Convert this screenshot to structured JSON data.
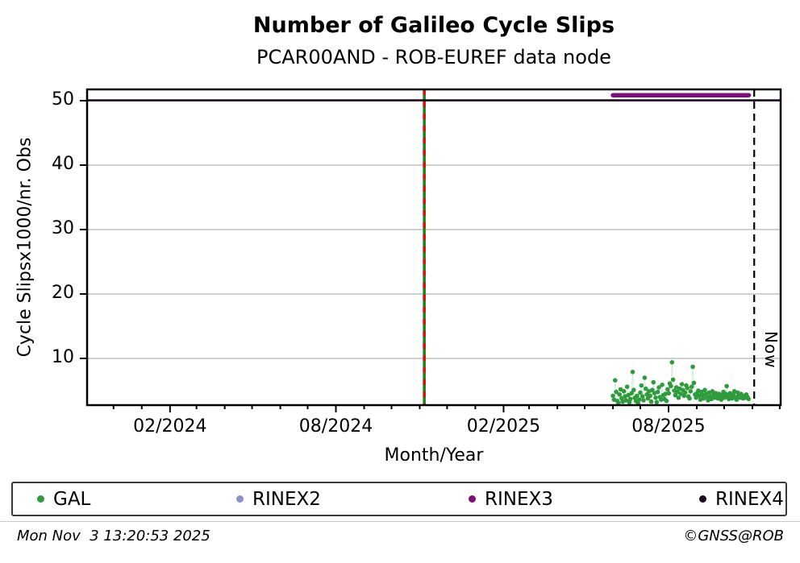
{
  "header": {
    "title": "Number of Galileo Cycle Slips",
    "subtitle": "PCAR00AND - ROB-EUREF data node"
  },
  "footer": {
    "timestamp": "Mon Nov  3 13:20:53 2025",
    "credit": "©GNSS@ROB"
  },
  "colors": {
    "gal_green": "#2e9b3c",
    "gal_connector": "rgba(46,155,60,0.20)",
    "rinex2_lavender": "#8f8fc9",
    "rinex3_purple": "#7d0c7d",
    "rinex4_darkpurple": "#1c0a20",
    "event_green": "#168416",
    "event_red": "#dd1111",
    "grid_gray": "#b3b3b3",
    "axis_black": "#000000"
  },
  "chart_data": {
    "type": "scatter",
    "title": "Number of Galileo Cycle Slips",
    "subtitle": "PCAR00AND - ROB-EUREF data node",
    "xlabel": "Month/Year",
    "ylabel": "Cycle Slipsx1000/nr. Obs",
    "xlim": [
      "2023-11-02",
      "2025-12-02"
    ],
    "ylim": [
      2.75,
      51.75
    ],
    "grid": "horizontal-gray-major",
    "y_ticks": [
      {
        "value": 10,
        "label": "10"
      },
      {
        "value": 20,
        "label": "20"
      },
      {
        "value": 30,
        "label": "30"
      },
      {
        "value": 40,
        "label": "40"
      },
      {
        "value": 50,
        "label": "50"
      }
    ],
    "x_major_ticks": [
      {
        "date": "2024-02-01",
        "label": "02/2024"
      },
      {
        "date": "2024-08-01",
        "label": "08/2024"
      },
      {
        "date": "2025-02-01",
        "label": "02/2025"
      },
      {
        "date": "2025-08-01",
        "label": "08/2025"
      }
    ],
    "x_minor_tick_interval_months": 1,
    "series": [
      {
        "name": "GAL",
        "type": "scatter-daily",
        "color": "#2e9b3c",
        "start": "2025-06-01",
        "step_days": 1.2,
        "values": [
          4.2,
          3.6,
          6.6,
          4.8,
          3.4,
          3.1,
          4.4,
          5.2,
          3.8,
          3.3,
          4.9,
          4.1,
          3.5,
          5.6,
          4.3,
          3.2,
          3.7,
          4.6,
          7.9,
          5.1,
          3.9,
          3.4,
          4.2,
          3.0,
          3.6,
          4.7,
          5.8,
          4.1,
          3.5,
          7.0,
          5.3,
          4.4,
          3.8,
          4.9,
          4.2,
          3.3,
          5.1,
          6.3,
          4.6,
          3.9,
          3.2,
          4.8,
          5.5,
          4.0,
          3.6,
          5.9,
          4.3,
          3.7,
          4.5,
          3.4,
          5.2,
          4.6,
          6.1,
          5.7,
          9.4,
          6.7,
          5.0,
          4.3,
          5.5,
          4.8,
          3.9,
          5.3,
          4.5,
          6.0,
          5.1,
          4.2,
          4.7,
          5.8,
          5.4,
          4.1,
          3.8,
          4.9,
          5.6,
          8.7,
          6.2,
          4.4,
          3.9,
          4.6,
          5.0,
          4.2,
          3.6,
          4.8,
          4.3,
          3.8,
          5.1,
          4.5,
          4.0,
          3.5,
          4.7,
          4.1,
          3.7,
          4.9,
          4.4,
          3.9,
          4.6,
          4.2,
          3.8,
          4.5,
          4.0,
          3.6,
          4.3,
          4.8,
          3.9,
          4.5,
          5.7,
          4.1,
          3.7,
          4.6,
          4.2,
          3.8,
          4.4,
          4.9,
          4.0,
          3.6,
          4.7,
          4.3,
          3.9,
          4.5,
          4.1,
          3.8,
          4.2,
          3.9,
          4.4,
          4.0,
          3.7
        ]
      },
      {
        "name": "RINEX3",
        "type": "availability-line",
        "color": "#7d0c7d",
        "y": 50.85,
        "from": "2025-06-01",
        "to": "2025-10-28"
      },
      {
        "name": "RINEX4",
        "type": "availability-line",
        "color": "#1c0a20",
        "y": 50.05,
        "from": "2023-11-02",
        "to": "2025-12-02"
      }
    ],
    "events": [
      {
        "date": "2024-11-06",
        "style": "green-solid-with-red-dashes"
      }
    ],
    "now_line": {
      "date": "2025-11-03",
      "label": "Now",
      "style": "black-dashed"
    },
    "legend_position": "bottom"
  },
  "legend": {
    "items": [
      {
        "label": "GAL",
        "color": "#2e9b3c"
      },
      {
        "label": "RINEX2",
        "color": "#8f8fc9"
      },
      {
        "label": "RINEX3",
        "color": "#7d0c7d"
      },
      {
        "label": "RINEX4",
        "color": "#1c0a20"
      }
    ]
  }
}
